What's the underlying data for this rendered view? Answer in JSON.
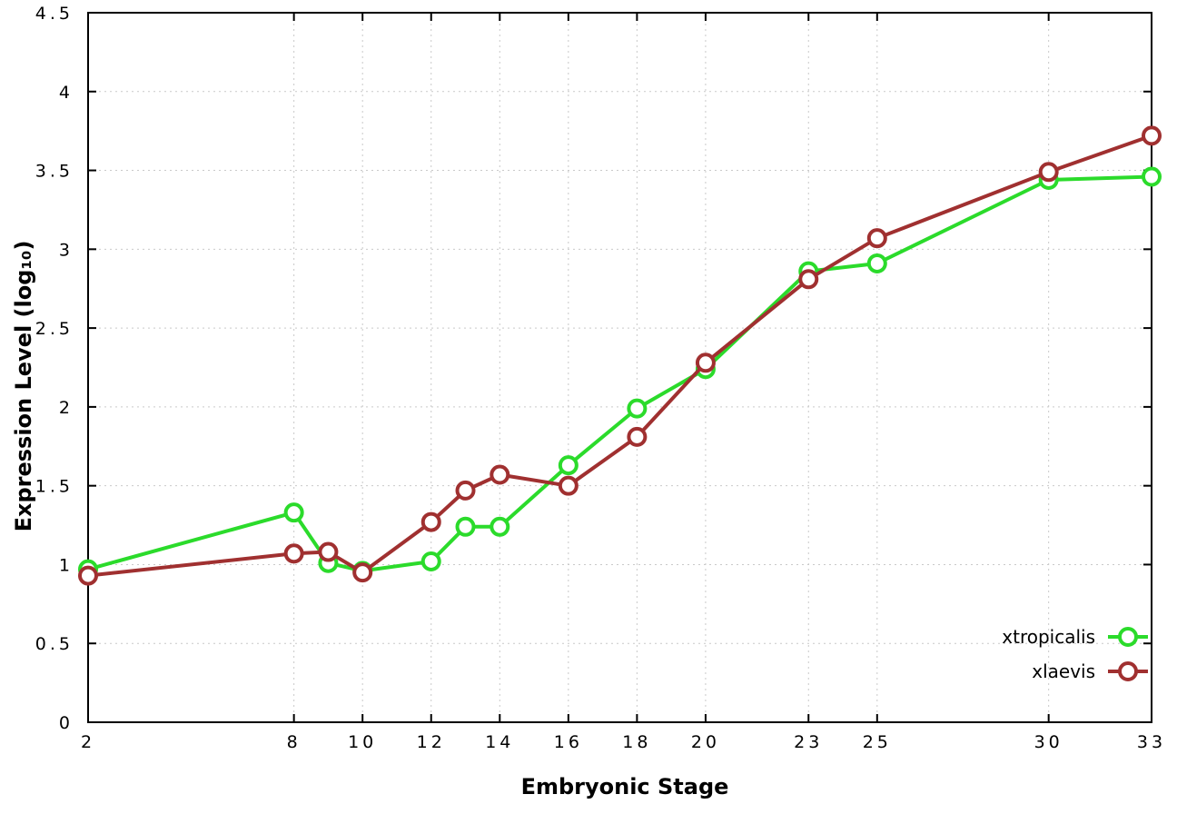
{
  "chart_data": {
    "type": "line",
    "title": "",
    "xlabel": "Embryonic Stage",
    "ylabel": "Expression Level (log₁₀)",
    "xlim": [
      2,
      33
    ],
    "ylim": [
      0,
      4.5
    ],
    "x_ticks": [
      2,
      8,
      10,
      12,
      14,
      16,
      18,
      20,
      23,
      25,
      30,
      33
    ],
    "y_ticks": [
      0,
      0.5,
      1,
      1.5,
      2,
      2.5,
      3,
      3.5,
      4,
      4.5
    ],
    "grid": true,
    "legend_position": "bottom-right",
    "x": [
      2,
      8,
      9,
      10,
      12,
      13,
      14,
      16,
      18,
      20,
      23,
      25,
      30,
      33
    ],
    "series": [
      {
        "name": "xtropicalis",
        "color": "#2bdb2b",
        "values": [
          0.97,
          1.33,
          1.01,
          0.96,
          1.02,
          1.24,
          1.24,
          1.63,
          1.99,
          2.24,
          2.86,
          2.91,
          3.44,
          3.46
        ]
      },
      {
        "name": "xlaevis",
        "color": "#a03030",
        "values": [
          0.93,
          1.07,
          1.08,
          0.95,
          1.27,
          1.47,
          1.57,
          1.5,
          1.81,
          2.28,
          2.81,
          3.07,
          3.49,
          3.72
        ]
      }
    ]
  },
  "colors": {
    "background": "#ffffff",
    "grid": "#c9c9c9",
    "axis": "#000000",
    "marker_fill": "#ffffff"
  }
}
